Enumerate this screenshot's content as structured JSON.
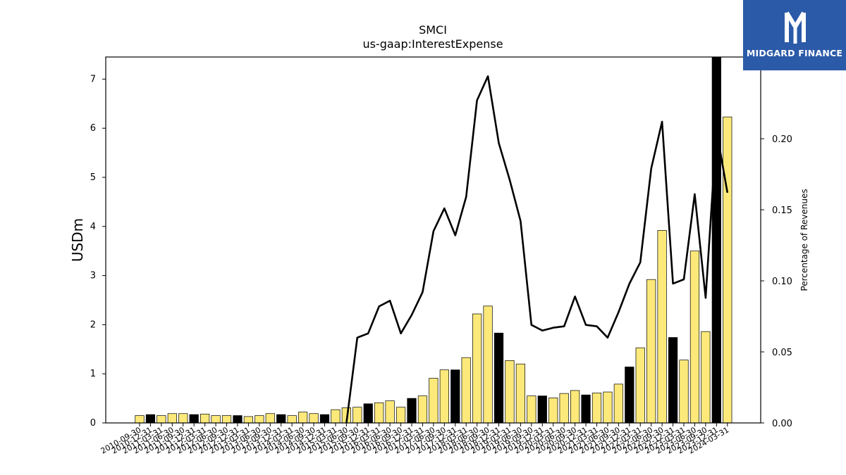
{
  "logo": {
    "text": "MIDGARD FINANCE"
  },
  "chart_data": {
    "type": "bar",
    "title": "SMCI",
    "subtitle": "us-gaap:InterestExpense",
    "ylabel": "USDm",
    "y2label": "Percentage of Revenues",
    "ylim": [
      0,
      7.45
    ],
    "y2lim": [
      0,
      0.2575
    ],
    "yticks": [
      0,
      1,
      2,
      3,
      4,
      5,
      6,
      7
    ],
    "y2ticks": [
      "0.00",
      "0.05",
      "0.10",
      "0.15",
      "0.20"
    ],
    "colors": {
      "quarterly": "#fce97a",
      "annual": "#000000",
      "line": "#000000"
    },
    "categories": [
      "2010-09-30",
      "2010-12-31",
      "2011-03-31",
      "2011-06-30",
      "2011-09-30",
      "2011-12-31",
      "2012-03-31",
      "2012-06-30",
      "2012-09-30",
      "2012-12-31",
      "2013-03-31",
      "2013-06-30",
      "2013-09-30",
      "2013-12-31",
      "2014-03-31",
      "2014-06-30",
      "2014-09-30",
      "2014-12-31",
      "2015-03-31",
      "2015-06-30",
      "2015-09-30",
      "2015-12-31",
      "2016-03-31",
      "2016-06-30",
      "2016-09-30",
      "2016-12-31",
      "2017-03-31",
      "2017-06-30",
      "2017-09-30",
      "2017-12-31",
      "2018-03-31",
      "2018-06-30",
      "2018-09-30",
      "2018-12-31",
      "2019-03-31",
      "2019-06-30",
      "2019-09-30",
      "2019-12-31",
      "2020-03-31",
      "2020-06-30",
      "2020-09-30",
      "2020-12-31",
      "2021-03-31",
      "2021-06-30",
      "2021-09-30",
      "2021-12-31",
      "2022-03-31",
      "2022-06-30",
      "2022-09-30",
      "2022-12-31",
      "2023-03-31",
      "2023-06-30",
      "2023-09-30",
      "2023-12-31",
      "2024-03-31"
    ],
    "values": [
      0.15,
      0.17,
      0.15,
      0.19,
      0.19,
      0.17,
      0.18,
      0.15,
      0.15,
      0.15,
      0.13,
      0.15,
      0.19,
      0.17,
      0.15,
      0.22,
      0.19,
      0.17,
      0.27,
      0.31,
      0.32,
      0.39,
      0.41,
      0.45,
      0.32,
      0.5,
      0.55,
      0.91,
      1.08,
      1.08,
      1.33,
      2.22,
      2.38,
      1.83,
      1.27,
      1.2,
      0.55,
      0.55,
      0.51,
      0.6,
      0.66,
      0.57,
      0.61,
      0.63,
      0.79,
      1.14,
      1.53,
      2.92,
      3.92,
      1.74,
      1.28,
      3.5,
      1.86,
      7.45,
      6.23
    ],
    "period_type": [
      "Q",
      "A",
      "Q",
      "Q",
      "Q",
      "A",
      "Q",
      "Q",
      "Q",
      "A",
      "Q",
      "Q",
      "Q",
      "A",
      "Q",
      "Q",
      "Q",
      "A",
      "Q",
      "Q",
      "Q",
      "A",
      "Q",
      "Q",
      "Q",
      "A",
      "Q",
      "Q",
      "Q",
      "A",
      "Q",
      "Q",
      "Q",
      "A",
      "Q",
      "Q",
      "Q",
      "A",
      "Q",
      "Q",
      "Q",
      "A",
      "Q",
      "Q",
      "Q",
      "A",
      "Q",
      "Q",
      "Q",
      "A",
      "Q",
      "Q",
      "Q",
      "A",
      "Q"
    ],
    "line_series": {
      "name": "Percentage of Revenues",
      "start_index": 19,
      "values": [
        0.0,
        0.06,
        0.063,
        0.082,
        0.086,
        0.063,
        0.076,
        0.092,
        0.135,
        0.151,
        0.132,
        0.159,
        0.227,
        0.244,
        0.197,
        0.171,
        0.142,
        0.069,
        0.065,
        0.067,
        0.068,
        0.089,
        0.069,
        0.068,
        0.06,
        0.078,
        0.098,
        0.113,
        0.179,
        0.212,
        0.098,
        0.101,
        0.161,
        0.088,
        0.206,
        0.162
      ]
    }
  }
}
